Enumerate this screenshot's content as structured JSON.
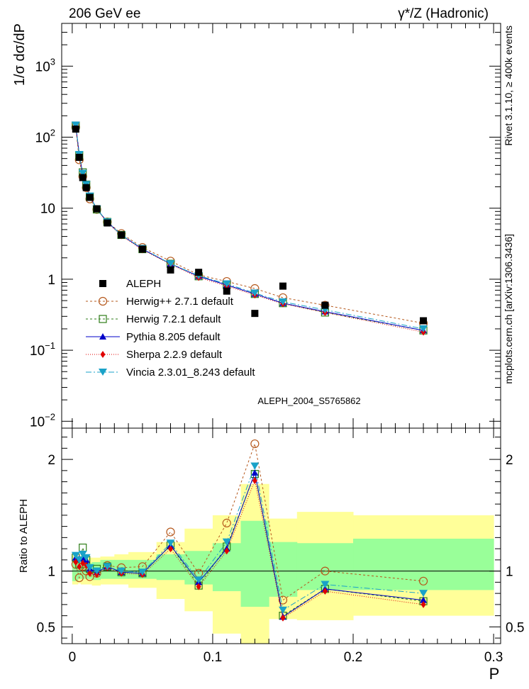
{
  "header": {
    "left": "206 GeV ee",
    "right": "γ*/Z (Hadronic)"
  },
  "side_text": {
    "top": "Rivet 3.1.10, ≥ 400k events",
    "bottom": "mcplots.cern.ch [arXiv:1306.3436]"
  },
  "watermark": "ALEPH_2004_S5765862",
  "colors": {
    "data": "#000000",
    "herwigpp": "#b5581c",
    "herwig7": "#2e7d18",
    "pythia": "#0000c8",
    "sherpa": "#e00000",
    "vincia": "#1aa2c8",
    "band_inner": "#99ff99",
    "band_outer": "#ffff99"
  },
  "chart_data": [
    {
      "type": "scatter",
      "title": "206 GeV ee",
      "ylabel": "1/σ  dσ/dP",
      "xlabel": "P",
      "yscale": "log",
      "xlim": [
        -0.0075,
        0.305
      ],
      "ylim": [
        0.008,
        4000
      ],
      "yticks": [
        {
          "v": 0.01,
          "base": "10",
          "exp": "−2"
        },
        {
          "v": 0.1,
          "base": "10",
          "exp": "−1"
        },
        {
          "v": 1,
          "base": "1",
          "exp": ""
        },
        {
          "v": 10,
          "base": "10",
          "exp": ""
        },
        {
          "v": 100,
          "base": "10",
          "exp": "2"
        },
        {
          "v": 1000,
          "base": "10",
          "exp": "3"
        }
      ],
      "x": [
        0.0025,
        0.005,
        0.0075,
        0.01,
        0.0125,
        0.0175,
        0.025,
        0.035,
        0.05,
        0.07,
        0.09,
        0.11,
        0.13,
        0.15,
        0.18,
        0.25
      ],
      "series": [
        {
          "name": "ALEPH",
          "key": "data",
          "values": [
            130,
            52,
            27,
            19.5,
            14.2,
            9.8,
            6.2,
            4.2,
            2.65,
            1.35,
            1.25,
            0.68,
            0.33,
            0.8,
            0.43,
            0.26
          ]
        },
        {
          "name": "Herwig++ 2.7.1 default",
          "key": "herwigpp",
          "values": [
            138,
            48,
            28,
            19.5,
            13.5,
            9.6,
            6.4,
            4.4,
            2.8,
            1.8,
            1.15,
            0.93,
            0.74,
            0.55,
            0.43,
            0.24
          ]
        },
        {
          "name": "Herwig 7.2.1 default",
          "key": "herwig7",
          "values": [
            146,
            55,
            32,
            21.5,
            14.5,
            9.6,
            6.4,
            4.2,
            2.65,
            1.65,
            1.1,
            0.83,
            0.62,
            0.46,
            0.34,
            0.19
          ]
        },
        {
          "name": "Pythia 8.205 default",
          "key": "pythia",
          "values": [
            146,
            58,
            30,
            21,
            14.8,
            9.8,
            6.4,
            4.2,
            2.65,
            1.65,
            1.1,
            0.83,
            0.62,
            0.46,
            0.35,
            0.19
          ]
        },
        {
          "name": "Sherpa 2.2.9 default",
          "key": "sherpa",
          "values": [
            140,
            54,
            29,
            20.5,
            14.5,
            9.7,
            6.3,
            4.1,
            2.6,
            1.62,
            1.06,
            0.8,
            0.6,
            0.45,
            0.34,
            0.18
          ]
        },
        {
          "name": "Vincia 2.3.01_8.243 default",
          "key": "vincia",
          "values": [
            148,
            57,
            31,
            21.5,
            14.8,
            9.8,
            6.4,
            4.2,
            2.7,
            1.65,
            1.12,
            0.86,
            0.64,
            0.48,
            0.37,
            0.2
          ]
        }
      ]
    },
    {
      "type": "line",
      "ylabel": "Ratio to ALEPH",
      "xlabel": "P",
      "xlim": [
        -0.0075,
        0.305
      ],
      "ylim": [
        0.35,
        2.28
      ],
      "yticks": [
        0.5,
        1,
        2
      ],
      "ytick_labels": [
        "0.5",
        "1",
        "2"
      ],
      "xticks": [
        0,
        0.1,
        0.2,
        0.3
      ],
      "xtick_labels": [
        "0",
        "0.1",
        "0.2",
        "0.3"
      ],
      "x": [
        0.0025,
        0.005,
        0.0075,
        0.01,
        0.0125,
        0.0175,
        0.025,
        0.035,
        0.05,
        0.07,
        0.09,
        0.11,
        0.13,
        0.15,
        0.18,
        0.25
      ],
      "bin_edges": [
        0,
        0.004,
        0.006,
        0.008,
        0.012,
        0.014,
        0.02,
        0.03,
        0.04,
        0.06,
        0.08,
        0.1,
        0.12,
        0.14,
        0.16,
        0.2,
        0.3
      ],
      "band_inner": [
        [
          0.91,
          1.09
        ],
        [
          0.93,
          1.08
        ],
        [
          0.93,
          1.09
        ],
        [
          0.93,
          1.08
        ],
        [
          0.93,
          1.07
        ],
        [
          0.92,
          1.08
        ],
        [
          0.93,
          1.1
        ],
        [
          0.93,
          1.1
        ],
        [
          0.93,
          1.1
        ],
        [
          0.92,
          1.15
        ],
        [
          0.88,
          1.18
        ],
        [
          0.82,
          1.25
        ],
        [
          0.68,
          1.45
        ],
        [
          0.77,
          1.26
        ],
        [
          0.83,
          1.25
        ],
        [
          0.83,
          1.29
        ]
      ],
      "band_outer": [
        [
          0.88,
          1.14
        ],
        [
          0.89,
          1.13
        ],
        [
          0.88,
          1.14
        ],
        [
          0.88,
          1.13
        ],
        [
          0.88,
          1.12
        ],
        [
          0.87,
          1.12
        ],
        [
          0.88,
          1.13
        ],
        [
          0.88,
          1.15
        ],
        [
          0.85,
          1.17
        ],
        [
          0.75,
          1.26
        ],
        [
          0.64,
          1.38
        ],
        [
          0.44,
          1.5
        ],
        [
          0.3,
          1.78
        ],
        [
          0.57,
          1.47
        ],
        [
          0.56,
          1.53
        ],
        [
          0.6,
          1.5
        ]
      ],
      "series": [
        {
          "name": "Herwig++ 2.7.1 default",
          "key": "herwigpp",
          "values": [
            1.06,
            0.94,
            1.04,
            1.0,
            0.95,
            0.98,
            1.05,
            1.03,
            1.04,
            1.35,
            0.98,
            1.43,
            2.14,
            0.74,
            1.0,
            0.91
          ]
        },
        {
          "name": "Herwig 7.2.1 default",
          "key": "herwig7",
          "values": [
            1.12,
            1.06,
            1.21,
            1.1,
            1.02,
            1.02,
            1.04,
            0.99,
            0.98,
            1.23,
            0.87,
            1.22,
            1.87,
            0.6,
            0.84,
            0.73
          ]
        },
        {
          "name": "Pythia 8.205 default",
          "key": "pythia",
          "values": [
            1.12,
            1.11,
            1.12,
            1.1,
            1.02,
            0.99,
            1.04,
            0.99,
            0.98,
            1.23,
            0.9,
            1.2,
            1.88,
            0.59,
            0.84,
            0.74
          ]
        },
        {
          "name": "Sherpa 2.2.9 default",
          "key": "sherpa",
          "values": [
            1.08,
            1.04,
            1.07,
            1.05,
            0.98,
            0.97,
            1.03,
            0.98,
            0.97,
            1.2,
            0.86,
            1.18,
            1.81,
            0.58,
            0.82,
            0.7
          ]
        },
        {
          "name": "Vincia 2.3.01_8.243 default",
          "key": "vincia",
          "values": [
            1.14,
            1.1,
            1.15,
            1.12,
            1.03,
            1.0,
            1.04,
            1.0,
            0.99,
            1.25,
            0.92,
            1.26,
            1.94,
            0.65,
            0.88,
            0.8
          ]
        }
      ]
    }
  ]
}
